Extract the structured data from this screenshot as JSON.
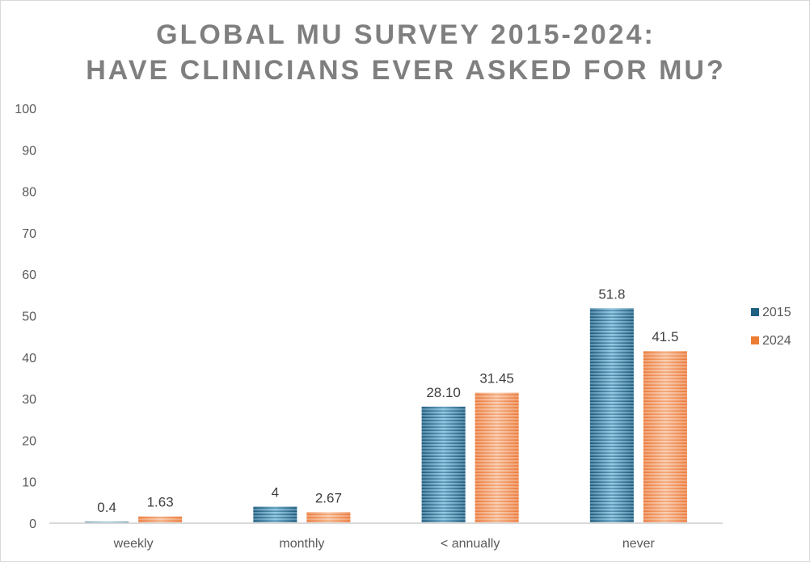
{
  "chart_data": {
    "type": "bar",
    "title": "GLOBAL MU SURVEY 2015-2024:\nHAVE CLINICIANS EVER ASKED FOR MU?",
    "categories": [
      "weekly",
      "monthly",
      "< annually",
      "never"
    ],
    "series": [
      {
        "name": "2015",
        "values": [
          0.4,
          4,
          28.1,
          51.8
        ],
        "labels": [
          "0.4",
          "4",
          "28.10",
          "51.8"
        ],
        "color": "#1f5f82"
      },
      {
        "name": "2024",
        "values": [
          1.63,
          2.67,
          31.45,
          41.5
        ],
        "labels": [
          "1.63",
          "2.67",
          "31.45",
          "41.5"
        ],
        "color": "#ed7d31"
      }
    ],
    "ylim": [
      0,
      100
    ],
    "yticks": [
      "0",
      "10",
      "20",
      "30",
      "40",
      "50",
      "60",
      "70",
      "80",
      "90",
      "100"
    ],
    "grid": false,
    "legend": "right"
  }
}
